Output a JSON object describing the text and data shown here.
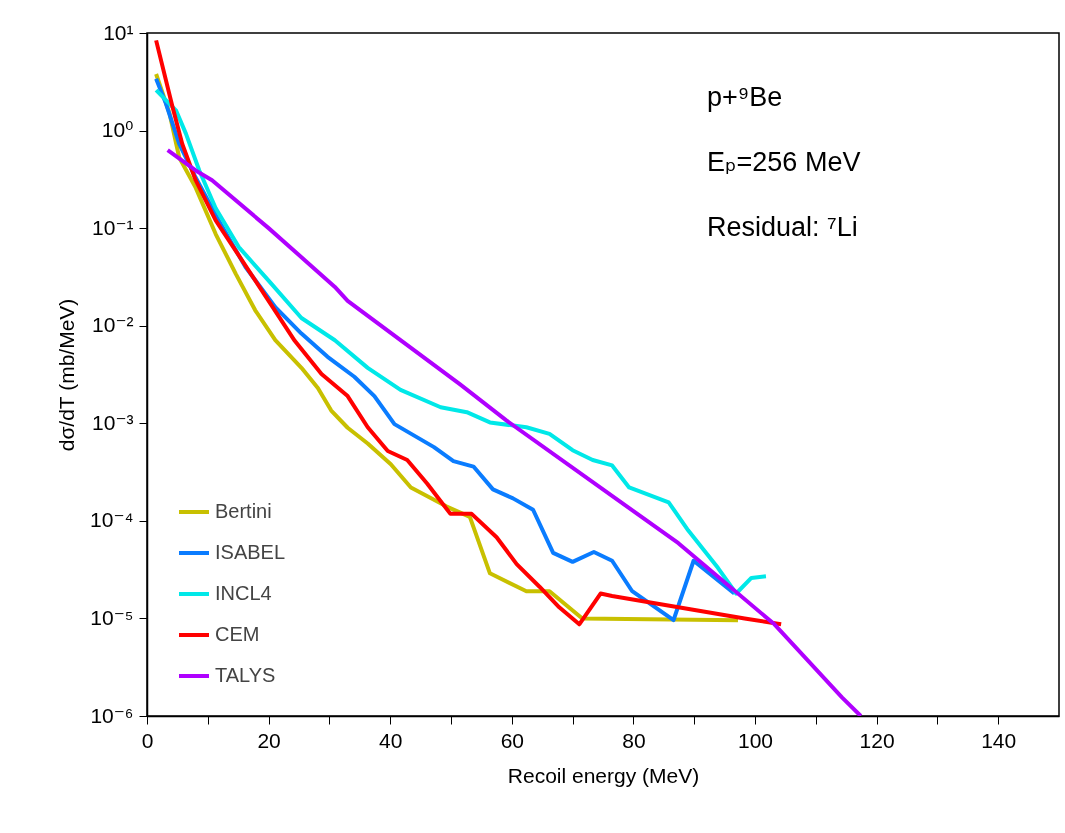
{
  "chart_data": {
    "type": "line",
    "xlabel": "Recoil energy (MeV)",
    "ylabel": "dσ/dT (mb/MeV)",
    "log": "y",
    "xlim": [
      0,
      150
    ],
    "ylim": [
      1e-06,
      10
    ],
    "xticks": [
      0,
      {
        "value": 10,
        "label": null
      },
      20,
      {
        "value": 30,
        "label": null
      },
      40,
      {
        "value": 50,
        "label": null
      },
      60,
      {
        "value": 70,
        "label": null
      },
      80,
      {
        "value": 90,
        "label": null
      },
      100,
      {
        "value": 110,
        "label": null
      },
      120,
      {
        "value": 130,
        "label": null
      },
      140
    ],
    "yticks": [
      {
        "value": 1e-06,
        "label": "10⁻⁶"
      },
      {
        "value": 1e-05,
        "label": "10⁻⁵"
      },
      {
        "value": 0.0001,
        "label": "10⁻⁴"
      },
      {
        "value": 0.001,
        "label": "10⁻³"
      },
      {
        "value": 0.01,
        "label": "10⁻²"
      },
      {
        "value": 0.1,
        "label": "10⁻¹"
      },
      {
        "value": 1,
        "label": "10⁰"
      },
      {
        "value": 10,
        "label": "10¹"
      }
    ],
    "grid": false,
    "legend": "bottom left",
    "line_style": "solid",
    "marker": "none",
    "annotations": [
      "p+⁹Be",
      "Eₚ=256 MeV",
      "Residual: ⁷Li"
    ],
    "series": [
      {
        "name": "Bertini",
        "color": "#c8c000",
        "x": [
          1.5,
          3.7,
          5.3,
          8,
          11.3,
          14.6,
          17.8,
          21.1,
          25.4,
          28.1,
          30.3,
          33,
          36.3,
          40.1,
          43.4,
          49.3,
          53.1,
          56.4,
          62.4,
          66.2,
          71.6,
          97.2
        ],
        "values": [
          3.8,
          1.5,
          0.53,
          0.26,
          0.087,
          0.034,
          0.0144,
          0.0071,
          0.0037,
          0.0023,
          0.00135,
          0.0009,
          0.00062,
          0.00038,
          0.00022,
          0.00014,
          0.00011,
          2.9e-05,
          1.9e-05,
          1.9e-05,
          1e-05,
          9.6e-06
        ]
      },
      {
        "name": "ISABEL",
        "color": "#0a7cff",
        "x": [
          1.5,
          3.1,
          5.3,
          8,
          11.8,
          16.2,
          21.1,
          25.4,
          29.7,
          34.1,
          37.4,
          40.7,
          47.2,
          50.4,
          53.7,
          56.9,
          60.2,
          63.5,
          66.8,
          70,
          73.5,
          76.5,
          79.8,
          86.6,
          89.9,
          96.6
        ],
        "values": [
          3.4,
          1.9,
          0.73,
          0.33,
          0.12,
          0.04,
          0.0155,
          0.0083,
          0.0048,
          0.003,
          0.0019,
          0.00098,
          0.00057,
          0.00041,
          0.00036,
          0.00021,
          0.00017,
          0.00013,
          4.7e-05,
          3.8e-05,
          4.8e-05,
          3.9e-05,
          1.9e-05,
          9.6e-06,
          3.9e-05,
          1.8e-05
        ]
      },
      {
        "name": "INCL4",
        "color": "#00e8e8",
        "x": [
          1.5,
          4.8,
          6.4,
          8.6,
          11.3,
          15.1,
          20,
          25.4,
          30.9,
          36.3,
          41.7,
          48.3,
          52.6,
          56.4,
          62.4,
          66.2,
          70,
          73.3,
          76.5,
          79.3,
          85.8,
          89,
          93.9,
          96.9,
          99.4,
          101.8
        ],
        "values": [
          2.6,
          1.6,
          0.93,
          0.39,
          0.16,
          0.064,
          0.029,
          0.012,
          0.0071,
          0.0037,
          0.0022,
          0.00146,
          0.0013,
          0.00102,
          0.00091,
          0.00078,
          0.00053,
          0.00042,
          0.00037,
          0.00022,
          0.000155,
          8e-05,
          3.3e-05,
          1.8e-05,
          2.6e-05,
          2.7e-05
        ]
      },
      {
        "name": "CEM",
        "color": "#ff0000",
        "x": [
          1.5,
          4.2,
          5.8,
          8,
          11.3,
          15.6,
          20,
          24.3,
          28.7,
          33,
          36.3,
          39.6,
          42.8,
          46.1,
          49.9,
          53.4,
          57.5,
          60.8,
          64.6,
          67.8,
          71.1,
          74.6,
          76.5,
          87.4,
          98.3,
          104.3
        ],
        "values": [
          8.4,
          1.74,
          0.73,
          0.31,
          0.12,
          0.047,
          0.018,
          0.007,
          0.0032,
          0.0019,
          0.00091,
          0.00052,
          0.00042,
          0.00024,
          0.000118,
          0.000118,
          6.8e-05,
          3.6e-05,
          2.1e-05,
          1.3e-05,
          8.7e-06,
          1.8e-05,
          1.7e-05,
          1.3e-05,
          1e-05,
          8.7e-06
        ]
      },
      {
        "name": "TALYS",
        "color": "#b000ff",
        "x": [
          3.4,
          8,
          10.7,
          20,
          30.9,
          33,
          51.5,
          59.1,
          87.4,
          103.2,
          114.3,
          117.4
        ],
        "values": [
          0.63,
          0.39,
          0.31,
          0.1,
          0.025,
          0.018,
          0.0025,
          0.00107,
          5.9e-05,
          8.7e-06,
          1.55e-06,
          1e-06
        ]
      }
    ]
  }
}
